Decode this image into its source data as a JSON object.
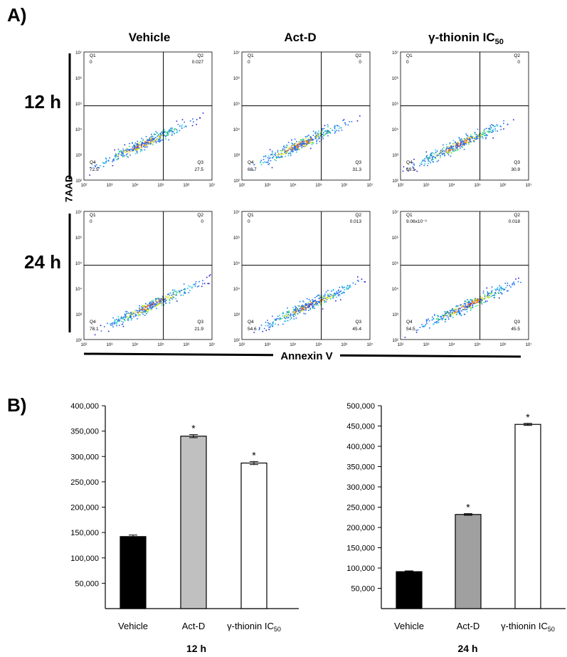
{
  "panel_a": {
    "label": "A)",
    "columns": [
      "Vehicle",
      "Act-D",
      "γ-thionin IC"
    ],
    "col3_sub": "50",
    "rows": [
      "12 h",
      "24 h"
    ],
    "ylabel": "7AAD",
    "xlabel": "Annexin V",
    "y_ticks": [
      "10⁷",
      "10⁶",
      "10⁵",
      "10⁴",
      "10³",
      "10²"
    ],
    "x_ticks": [
      "10²",
      "10³",
      "10⁴",
      "10⁵",
      "10⁶",
      "10⁷"
    ],
    "plots": [
      {
        "row": 0,
        "col": 0,
        "q1": "0",
        "q2": "0.027",
        "q3": "27.5",
        "q4": "72.5"
      },
      {
        "row": 0,
        "col": 1,
        "q1": "0",
        "q2": "0",
        "q3": "31.3",
        "q4": "68.7"
      },
      {
        "row": 0,
        "col": 2,
        "q1": "0",
        "q2": "0",
        "q3": "30.9",
        "q4": "69.1"
      },
      {
        "row": 1,
        "col": 0,
        "q1": "0",
        "q2": "0",
        "q3": "21.9",
        "q4": "78.1"
      },
      {
        "row": 1,
        "col": 1,
        "q1": "0",
        "q2": "0.013",
        "q3": "45.4",
        "q4": "54.6"
      },
      {
        "row": 1,
        "col": 2,
        "q1": "9.06x10⁻³",
        "q2": "0.018",
        "q3": "45.5",
        "q4": "54.5"
      }
    ]
  },
  "panel_b": {
    "label": "B)",
    "sub_suffix": "50"
  },
  "chart_data": [
    {
      "type": "bar",
      "title": "12 h",
      "categories": [
        "Vehicle",
        "Act-D",
        "γ-thionin IC"
      ],
      "values": [
        142000,
        340000,
        287000
      ],
      "errors": [
        3000,
        3000,
        3000
      ],
      "significant": [
        false,
        true,
        true
      ],
      "star": "*",
      "colors": [
        "#000000",
        "#c0c0c0",
        "#ffffff"
      ],
      "ylim": [
        0,
        400000
      ],
      "yticks": [
        "50,000",
        "100,000",
        "150,000",
        "200,000",
        "250,000",
        "300,000",
        "350,000",
        "400,000"
      ],
      "xlabel": "",
      "ylabel": ""
    },
    {
      "type": "bar",
      "title": "24 h",
      "categories": [
        "Vehicle",
        "Act-D",
        "γ-thionin IC"
      ],
      "values": [
        91000,
        232000,
        454000
      ],
      "errors": [
        2000,
        2000,
        2500
      ],
      "significant": [
        false,
        true,
        true
      ],
      "star": "*",
      "colors": [
        "#000000",
        "#a0a0a0",
        "#ffffff"
      ],
      "ylim": [
        0,
        500000
      ],
      "yticks": [
        "50,000",
        "100,000",
        "150,000",
        "200,000",
        "250,000",
        "300,000",
        "350,000",
        "400,000",
        "450,000",
        "500,000"
      ],
      "xlabel": "",
      "ylabel": ""
    }
  ]
}
